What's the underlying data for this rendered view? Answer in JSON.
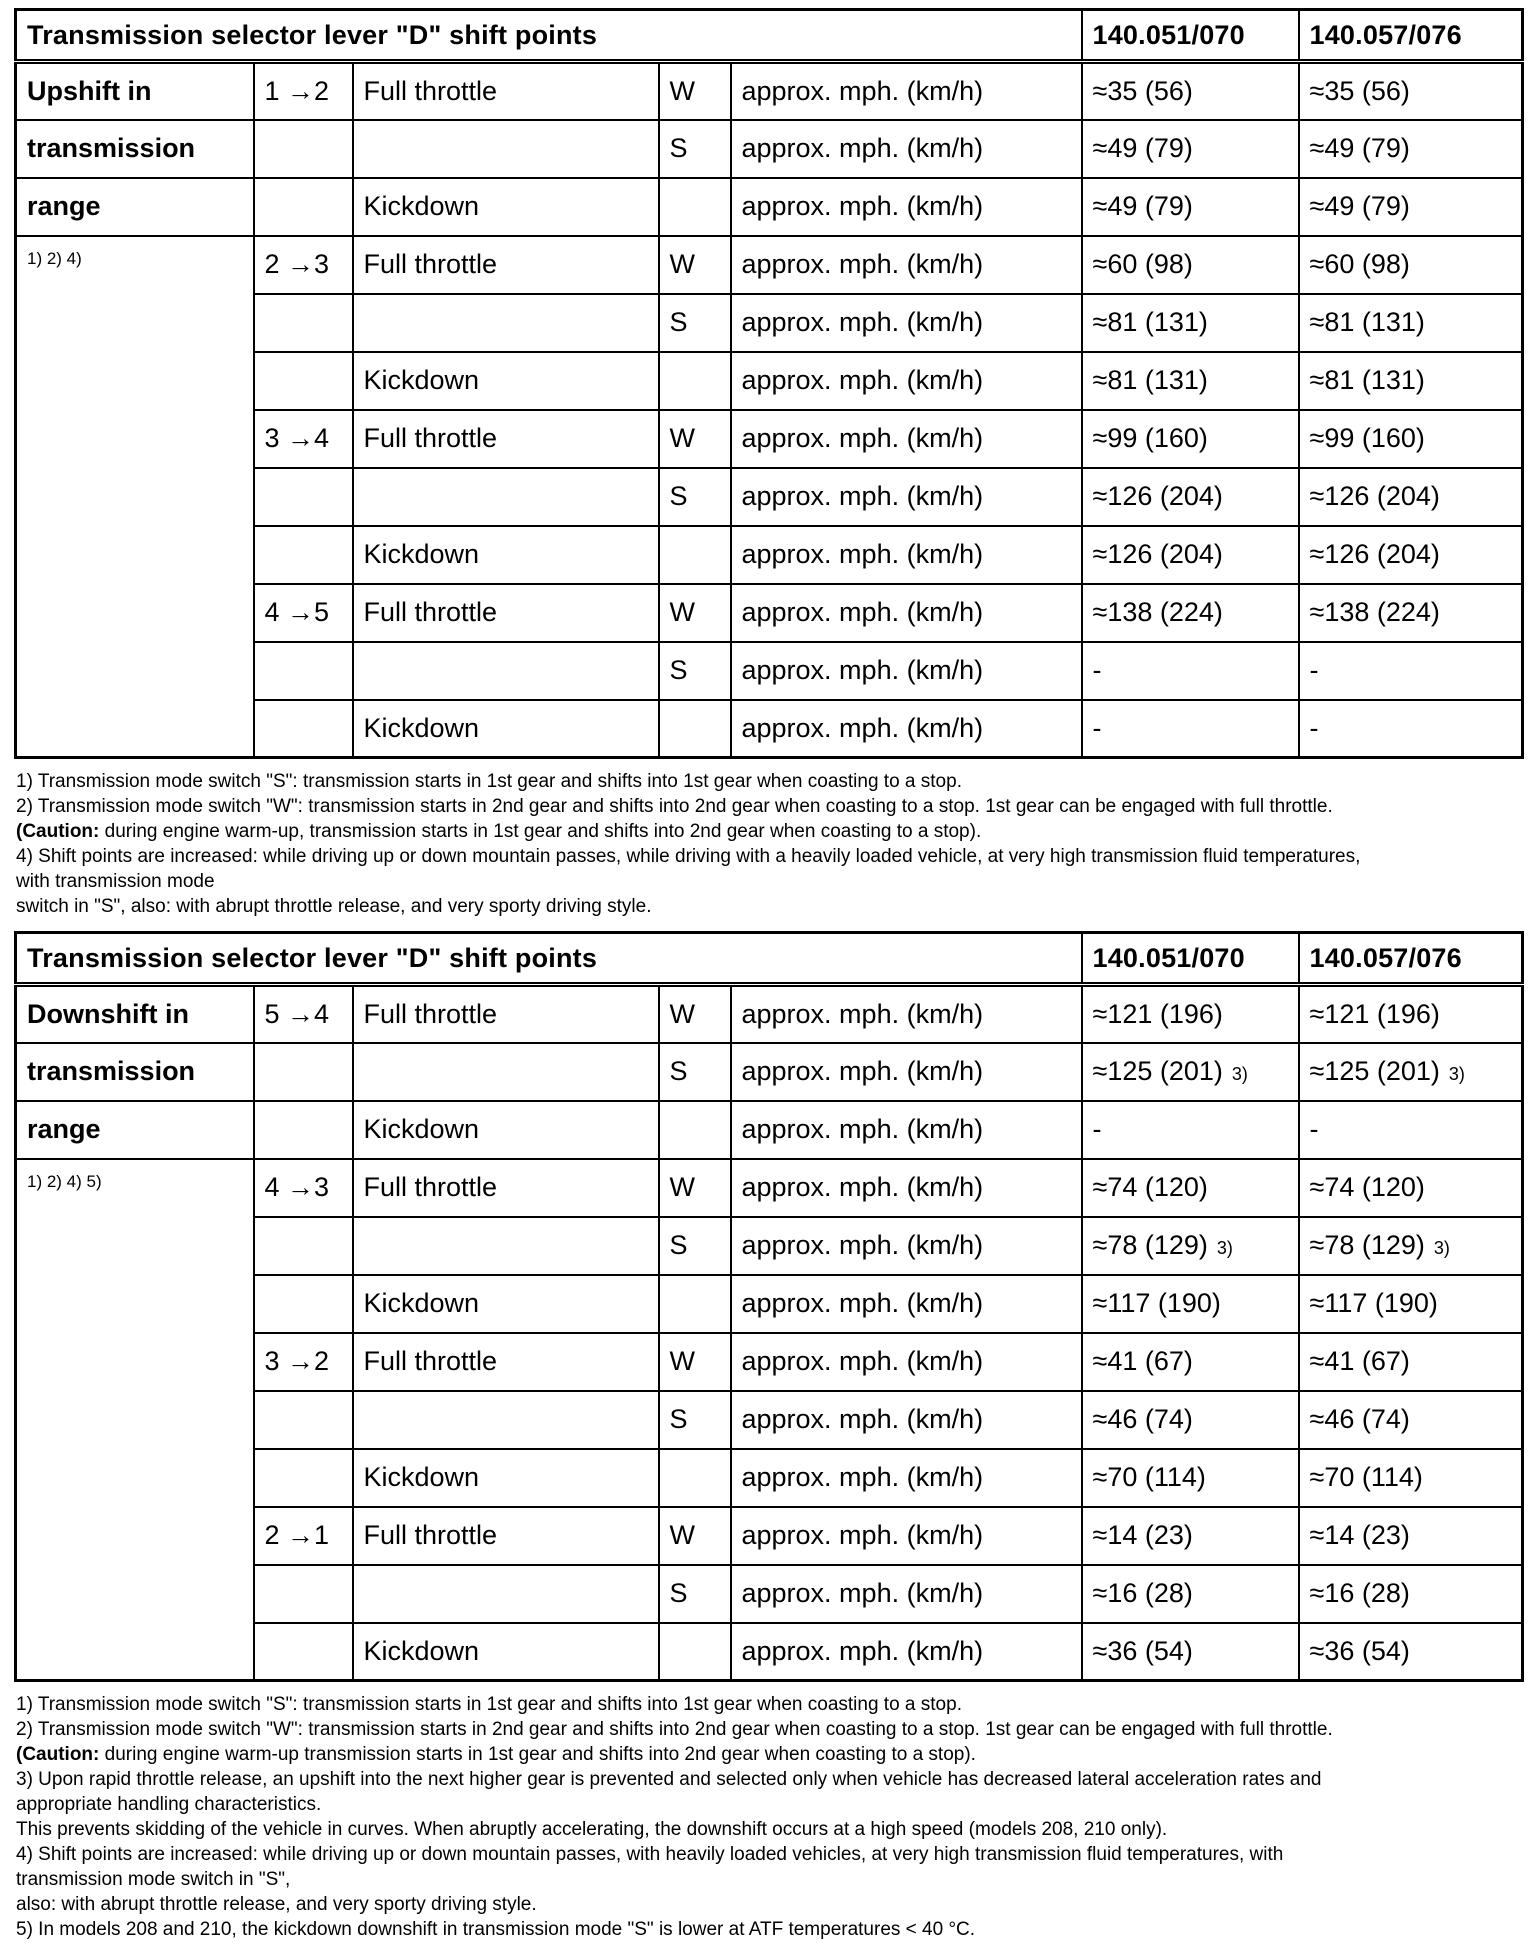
{
  "document": {
    "tables": [
      {
        "title": "Transmission selector lever \"D\" shift points",
        "model_headers": [
          "140.051/070",
          "140.057/076"
        ],
        "unit_label": "approx. mph. (km/h)",
        "rows": [
          {
            "label": "Upshift in",
            "label_style": "bold",
            "gear": "1 →2",
            "throttle": "Full throttle",
            "mode": "W",
            "values": [
              "≈35 (56)",
              "≈35 (56)"
            ],
            "sup": ""
          },
          {
            "label": "transmission",
            "label_style": "bold",
            "gear": "",
            "throttle": "",
            "mode": "S",
            "values": [
              "≈49 (79)",
              "≈49 (79)"
            ],
            "sup": ""
          },
          {
            "label": "range",
            "label_style": "bold",
            "gear": "",
            "throttle": "Kickdown",
            "mode": "",
            "values": [
              "≈49 (79)",
              "≈49 (79)"
            ],
            "sup": ""
          },
          {
            "label": "1) 2) 4)",
            "label_style": "small",
            "label_rowspan": 9,
            "gear": "2 →3",
            "throttle": "Full throttle",
            "mode": "W",
            "values": [
              "≈60 (98)",
              "≈60 (98)"
            ],
            "sup": ""
          },
          {
            "gear": "",
            "throttle": "",
            "mode": "S",
            "values": [
              "≈81 (131)",
              "≈81 (131)"
            ],
            "sup": ""
          },
          {
            "gear": "",
            "throttle": "Kickdown",
            "mode": "",
            "values": [
              "≈81 (131)",
              "≈81 (131)"
            ],
            "sup": ""
          },
          {
            "gear": "3 →4",
            "throttle": "Full throttle",
            "mode": "W",
            "values": [
              "≈99 (160)",
              "≈99 (160)"
            ],
            "sup": ""
          },
          {
            "gear": "",
            "throttle": "",
            "mode": "S",
            "values": [
              "≈126 (204)",
              "≈126 (204)"
            ],
            "sup": ""
          },
          {
            "gear": "",
            "throttle": "Kickdown",
            "mode": "",
            "values": [
              "≈126 (204)",
              "≈126 (204)"
            ],
            "sup": ""
          },
          {
            "gear": "4 →5",
            "throttle": "Full throttle",
            "mode": "W",
            "values": [
              "≈138 (224)",
              "≈138 (224)"
            ],
            "sup": ""
          },
          {
            "gear": "",
            "throttle": "",
            "mode": "S",
            "values": [
              "-",
              "-"
            ],
            "sup": ""
          },
          {
            "gear": "",
            "throttle": "Kickdown",
            "mode": "",
            "values": [
              "-",
              "-"
            ],
            "sup": ""
          }
        ],
        "footnotes": [
          {
            "bold": "",
            "text": "1) Transmission mode switch \"S\": transmission starts in 1st gear and shifts into 1st gear when coasting to a stop."
          },
          {
            "bold": "",
            "text": "2) Transmission mode switch \"W\": transmission starts in 2nd gear and shifts into 2nd gear when coasting to a stop. 1st gear can be engaged with full throttle."
          },
          {
            "bold": "(Caution:",
            "text": " during engine warm-up, transmission starts in 1st gear and shifts into 2nd gear when coasting to a stop)."
          },
          {
            "bold": "",
            "text": "4) Shift points are increased: while driving up or down mountain passes, while driving with a heavily loaded vehicle, at very high transmission fluid temperatures,"
          },
          {
            "bold": "",
            "text": "with transmission mode"
          },
          {
            "bold": "",
            "text": "switch in \"S\", also: with abrupt throttle release, and very sporty driving style."
          }
        ]
      },
      {
        "title": "Transmission selector lever \"D\" shift points",
        "model_headers": [
          "140.051/070",
          "140.057/076"
        ],
        "unit_label": "approx. mph. (km/h)",
        "rows": [
          {
            "label": "Downshift in",
            "label_style": "bold",
            "gear": "5 →4",
            "throttle": "Full throttle",
            "mode": "W",
            "values": [
              "≈121 (196)",
              "≈121 (196)"
            ],
            "sup": ""
          },
          {
            "label": "transmission",
            "label_style": "bold",
            "gear": "",
            "throttle": "",
            "mode": "S",
            "values": [
              "≈125 (201)",
              "≈125 (201)"
            ],
            "sup": "3)"
          },
          {
            "label": "range",
            "label_style": "bold",
            "gear": "",
            "throttle": "Kickdown",
            "mode": "",
            "values": [
              "-",
              "-"
            ],
            "sup": ""
          },
          {
            "label": "1) 2) 4) 5)",
            "label_style": "small",
            "label_rowspan": 9,
            "gear": "4 →3",
            "throttle": "Full throttle",
            "mode": "W",
            "values": [
              "≈74 (120)",
              "≈74 (120)"
            ],
            "sup": ""
          },
          {
            "gear": "",
            "throttle": "",
            "mode": "S",
            "values": [
              "≈78 (129)",
              "≈78 (129)"
            ],
            "sup": "3)"
          },
          {
            "gear": "",
            "throttle": "Kickdown",
            "mode": "",
            "values": [
              "≈117 (190)",
              "≈117 (190)"
            ],
            "sup": ""
          },
          {
            "gear": "3 →2",
            "throttle": "Full throttle",
            "mode": "W",
            "values": [
              "≈41 (67)",
              "≈41 (67)"
            ],
            "sup": ""
          },
          {
            "gear": "",
            "throttle": "",
            "mode": "S",
            "values": [
              "≈46 (74)",
              "≈46 (74)"
            ],
            "sup": ""
          },
          {
            "gear": "",
            "throttle": "Kickdown",
            "mode": "",
            "values": [
              "≈70 (114)",
              "≈70 (114)"
            ],
            "sup": ""
          },
          {
            "gear": "2 →1",
            "throttle": "Full throttle",
            "mode": "W",
            "values": [
              "≈14 (23)",
              "≈14 (23)"
            ],
            "sup": ""
          },
          {
            "gear": "",
            "throttle": "",
            "mode": "S",
            "values": [
              "≈16 (28)",
              "≈16 (28)"
            ],
            "sup": ""
          },
          {
            "gear": "",
            "throttle": "Kickdown",
            "mode": "",
            "values": [
              "≈36 (54)",
              "≈36 (54)"
            ],
            "sup": ""
          }
        ],
        "footnotes": [
          {
            "bold": "",
            "text": "1) Transmission mode switch \"S\": transmission starts in 1st gear and shifts into 1st gear when coasting to a stop."
          },
          {
            "bold": "",
            "text": "2) Transmission mode switch \"W\": transmission starts in 2nd gear and shifts into 2nd gear when coasting to a stop. 1st gear can be engaged with full throttle."
          },
          {
            "bold": "(Caution:",
            "text": " during engine warm-up transmission starts in 1st gear and shifts into 2nd gear when coasting to a stop)."
          },
          {
            "bold": "",
            "text": "3) Upon rapid throttle release, an upshift into the next higher gear is prevented and selected only when vehicle has decreased lateral acceleration rates and"
          },
          {
            "bold": "",
            "text": "appropriate handling characteristics."
          },
          {
            "bold": "",
            "text": "This prevents skidding of the vehicle in curves. When abruptly accelerating, the downshift occurs at a high speed (models 208, 210 only)."
          },
          {
            "bold": "",
            "text": "4) Shift points are increased: while driving up or down mountain passes, with heavily loaded vehicles, at very high transmission fluid temperatures, with"
          },
          {
            "bold": "",
            "text": "transmission mode switch in \"S\","
          },
          {
            "bold": "",
            "text": "also: with abrupt throttle release, and very sporty driving style."
          },
          {
            "bold": "",
            "text": "5) In models 208 and 210, the kickdown downshift in transmission mode \"S\" is lower at ATF temperatures < 40 °C."
          }
        ]
      }
    ]
  }
}
